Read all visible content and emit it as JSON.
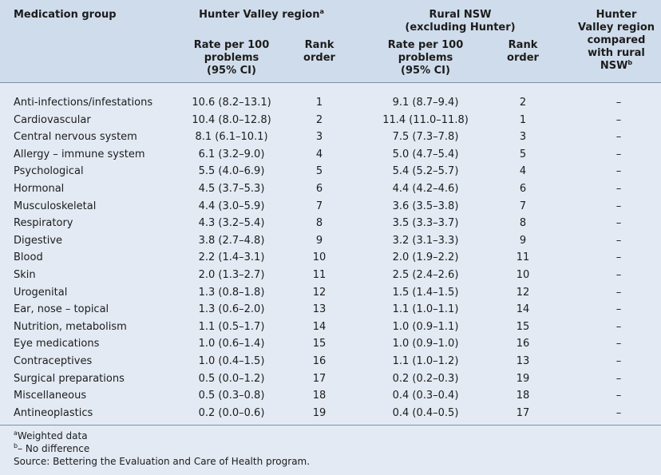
{
  "headers": {
    "medication_group": "Medication group",
    "hunter_valley": "Hunter Valley region",
    "hunter_valley_sup": "a",
    "rural_line1": "Rural NSW",
    "rural_line2": "(excluding Hunter)",
    "compare_line1": "Hunter",
    "compare_line2": "Valley region",
    "compare_line3": "compared",
    "compare_line4": "with rural",
    "compare_line5": "NSW",
    "compare_sup": "b",
    "rate_line1": "Rate per 100",
    "rate_line2": "problems",
    "rate_line3": "(95% CI)",
    "rank_line1": "Rank",
    "rank_line2": "order"
  },
  "rows": [
    {
      "group": "Anti-infections/infestations",
      "hv_rate": "10.6 (8.2–13.1)",
      "hv_rank": "1",
      "rural_rate": "9.1 (8.7–9.4)",
      "rural_rank": "2",
      "compare": "–"
    },
    {
      "group": "Cardiovascular",
      "hv_rate": "10.4 (8.0–12.8)",
      "hv_rank": "2",
      "rural_rate": "11.4 (11.0–11.8)",
      "rural_rank": "1",
      "compare": "–"
    },
    {
      "group": "Central nervous system",
      "hv_rate": "8.1 (6.1–10.1)",
      "hv_rank": "3",
      "rural_rate": "7.5 (7.3–7.8)",
      "rural_rank": "3",
      "compare": "–"
    },
    {
      "group": "Allergy – immune system",
      "hv_rate": "6.1 (3.2–9.0)",
      "hv_rank": "4",
      "rural_rate": "5.0 (4.7–5.4)",
      "rural_rank": "5",
      "compare": "–"
    },
    {
      "group": "Psychological",
      "hv_rate": "5.5 (4.0–6.9)",
      "hv_rank": "5",
      "rural_rate": "5.4 (5.2–5.7)",
      "rural_rank": "4",
      "compare": "–"
    },
    {
      "group": "Hormonal",
      "hv_rate": "4.5 (3.7–5.3)",
      "hv_rank": "6",
      "rural_rate": "4.4 (4.2–4.6)",
      "rural_rank": "6",
      "compare": "–"
    },
    {
      "group": "Musculoskeletal",
      "hv_rate": "4.4 (3.0–5.9)",
      "hv_rank": "7",
      "rural_rate": "3.6 (3.5–3.8)",
      "rural_rank": "7",
      "compare": "–"
    },
    {
      "group": "Respiratory",
      "hv_rate": "4.3 (3.2–5.4)",
      "hv_rank": "8",
      "rural_rate": "3.5 (3.3–3.7)",
      "rural_rank": "8",
      "compare": "–"
    },
    {
      "group": "Digestive",
      "hv_rate": "3.8 (2.7–4.8)",
      "hv_rank": "9",
      "rural_rate": "3.2 (3.1–3.3)",
      "rural_rank": "9",
      "compare": "–"
    },
    {
      "group": "Blood",
      "hv_rate": "2.2 (1.4–3.1)",
      "hv_rank": "10",
      "rural_rate": "2.0 (1.9–2.2)",
      "rural_rank": "11",
      "compare": "–"
    },
    {
      "group": "Skin",
      "hv_rate": "2.0 (1.3–2.7)",
      "hv_rank": "11",
      "rural_rate": "2.5 (2.4–2.6)",
      "rural_rank": "10",
      "compare": "–"
    },
    {
      "group": "Urogenital",
      "hv_rate": "1.3 (0.8–1.8)",
      "hv_rank": "12",
      "rural_rate": "1.5 (1.4–1.5)",
      "rural_rank": "12",
      "compare": "–"
    },
    {
      "group": "Ear, nose – topical",
      "hv_rate": "1.3 (0.6–2.0)",
      "hv_rank": "13",
      "rural_rate": "1.1 (1.0–1.1)",
      "rural_rank": "14",
      "compare": "–"
    },
    {
      "group": "Nutrition, metabolism",
      "hv_rate": "1.1 (0.5–1.7)",
      "hv_rank": "14",
      "rural_rate": "1.0 (0.9–1.1)",
      "rural_rank": "15",
      "compare": "–"
    },
    {
      "group": "Eye medications",
      "hv_rate": "1.0 (0.6–1.4)",
      "hv_rank": "15",
      "rural_rate": "1.0 (0.9–1.0)",
      "rural_rank": "16",
      "compare": "–"
    },
    {
      "group": "Contraceptives",
      "hv_rate": "1.0 (0.4–1.5)",
      "hv_rank": "16",
      "rural_rate": "1.1 (1.0–1.2)",
      "rural_rank": "13",
      "compare": "–"
    },
    {
      "group": "Surgical preparations",
      "hv_rate": "0.5 (0.0–1.2)",
      "hv_rank": "17",
      "rural_rate": "0.2 (0.2–0.3)",
      "rural_rank": "19",
      "compare": "–"
    },
    {
      "group": "Miscellaneous",
      "hv_rate": "0.5 (0.3–0.8)",
      "hv_rank": "18",
      "rural_rate": "0.4 (0.3–0.4)",
      "rural_rank": "18",
      "compare": "–"
    },
    {
      "group": "Antineoplastics",
      "hv_rate": "0.2 (0.0–0.6)",
      "hv_rank": "19",
      "rural_rate": "0.4 (0.4–0.5)",
      "rural_rank": "17",
      "compare": "–"
    }
  ],
  "footnotes": {
    "a_sup": "a",
    "a_text": "Weighted data",
    "b_sup": "b",
    "b_text": "– No difference",
    "source": "Source: Bettering the Evaluation and Care of Health program."
  }
}
